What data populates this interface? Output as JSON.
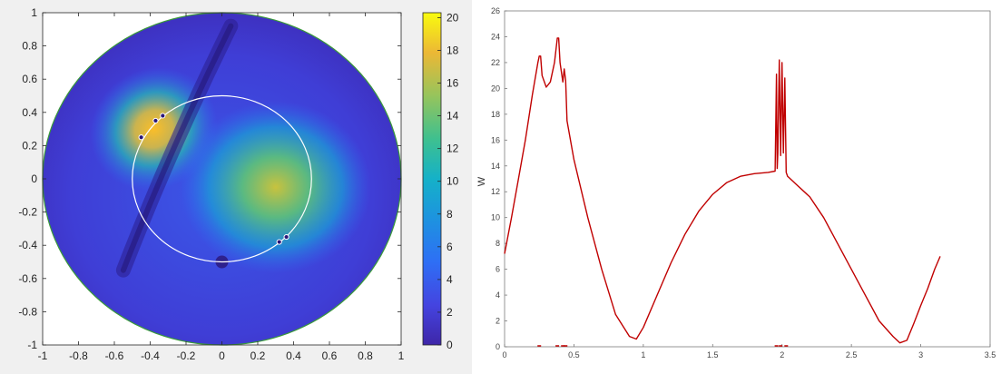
{
  "heatmap": {
    "chart_data": {
      "type": "heatmap",
      "title": "",
      "xlim": [
        -1,
        1
      ],
      "ylim": [
        -1,
        1
      ],
      "x_ticks": [
        "-1",
        "-0.8",
        "-0.6",
        "-0.4",
        "-0.2",
        "0",
        "0.2",
        "0.4",
        "0.6",
        "0.8",
        "1"
      ],
      "y_ticks": [
        "1",
        "0.8",
        "0.6",
        "0.4",
        "0.2",
        "0",
        "-0.2",
        "-0.4",
        "-0.6",
        "-0.8",
        "-1"
      ],
      "colorbar": {
        "range": [
          0,
          20.3
        ],
        "ticks": [
          "20",
          "18",
          "16",
          "14",
          "12",
          "10",
          "8",
          "6",
          "4",
          "2",
          "0"
        ],
        "colormap": "parula"
      },
      "domain": {
        "shape": "disk",
        "radius": 1,
        "edge_color": "#3a9a3a"
      },
      "hot_spots": [
        {
          "x": -0.38,
          "y": 0.3,
          "value": 19
        },
        {
          "x": 0.3,
          "y": -0.05,
          "value": 13
        }
      ],
      "dark_arc": "curved band of low values from (0.05, 0.9) through (-0.25, 0) to (-0.5, -0.5)",
      "low_point": {
        "x": 0,
        "y": -0.5
      },
      "circle": {
        "center": [
          0,
          0
        ],
        "radius": 0.5,
        "color": "#ffffff"
      },
      "markers": [
        {
          "x": -0.45,
          "y": 0.25
        },
        {
          "x": -0.37,
          "y": 0.35
        },
        {
          "x": -0.33,
          "y": 0.38
        },
        {
          "x": 0.32,
          "y": -0.38
        },
        {
          "x": 0.36,
          "y": -0.35
        }
      ]
    }
  },
  "line": {
    "chart_data": {
      "type": "line",
      "xlim": [
        0,
        3.5
      ],
      "ylim": [
        0,
        26
      ],
      "ylabel": "W",
      "x_ticks": [
        "0",
        "0.5",
        "1",
        "1.5",
        "2",
        "2.5",
        "3",
        "3.5"
      ],
      "y_ticks": [
        "0",
        "2",
        "4",
        "6",
        "8",
        "10",
        "12",
        "14",
        "16",
        "18",
        "20",
        "22",
        "24",
        "26"
      ],
      "line_color": "#c00000",
      "series": [
        {
          "x": [
            0,
            0.05,
            0.1,
            0.15,
            0.2,
            0.24,
            0.25,
            0.26,
            0.27,
            0.3,
            0.33,
            0.36,
            0.38,
            0.39,
            0.4,
            0.42,
            0.43,
            0.44,
            0.45,
            0.5,
            0.6,
            0.7,
            0.8,
            0.9,
            0.95,
            1.0,
            1.1,
            1.2,
            1.3,
            1.4,
            1.5,
            1.6,
            1.7,
            1.8,
            1.9,
            1.95,
            1.96,
            1.965,
            1.97,
            1.98,
            1.99,
            2.0,
            2.01,
            2.02,
            2.03,
            2.04,
            2.05,
            2.1,
            2.2,
            2.3,
            2.4,
            2.5,
            2.6,
            2.7,
            2.8,
            2.85,
            2.9,
            2.95,
            3.0,
            3.05,
            3.1,
            3.14
          ],
          "y": [
            7.2,
            10,
            13,
            16,
            19.5,
            22,
            22.5,
            22.5,
            21,
            20.1,
            20.5,
            22,
            23.9,
            23.9,
            22,
            20.5,
            21.5,
            20.6,
            17.5,
            14.5,
            10,
            6,
            2.5,
            0.8,
            0.6,
            1.5,
            4,
            6.5,
            8.7,
            10.5,
            11.8,
            12.7,
            13.2,
            13.4,
            13.5,
            13.6,
            21.1,
            13.8,
            15,
            22.2,
            14.8,
            22,
            15,
            20.8,
            13.5,
            13.2,
            13.1,
            12.6,
            11.6,
            10,
            8,
            6,
            4,
            2,
            0.8,
            0.3,
            0.5,
            1.8,
            3.2,
            4.5,
            6,
            7
          ]
        }
      ],
      "baseline_marks_x": [
        0.25,
        0.38,
        0.42,
        0.44,
        1.96,
        1.99,
        2.03
      ]
    }
  }
}
